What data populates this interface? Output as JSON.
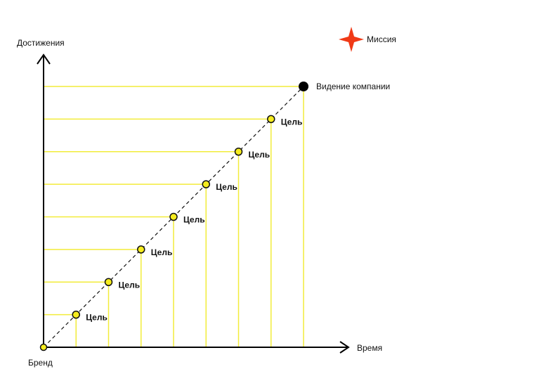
{
  "axes": {
    "y_label": "Достижения",
    "x_label": "Время"
  },
  "legend": {
    "label": "Миссия",
    "icon": "four-point-star-icon",
    "color": "#f03a17"
  },
  "origin": {
    "label": "Бренд"
  },
  "vision": {
    "label": "Видение компании",
    "color": "#000000"
  },
  "goals": [
    {
      "label": "Цель"
    },
    {
      "label": "Цель"
    },
    {
      "label": "Цель"
    },
    {
      "label": "Цель"
    },
    {
      "label": "Цель"
    },
    {
      "label": "Цель"
    },
    {
      "label": "Цель"
    }
  ],
  "colors": {
    "axis": "#000000",
    "guide": "#f2ec3a",
    "goal_fill": "#f5ec1e",
    "goal_stroke": "#111111",
    "diagonal": "#111111"
  }
}
